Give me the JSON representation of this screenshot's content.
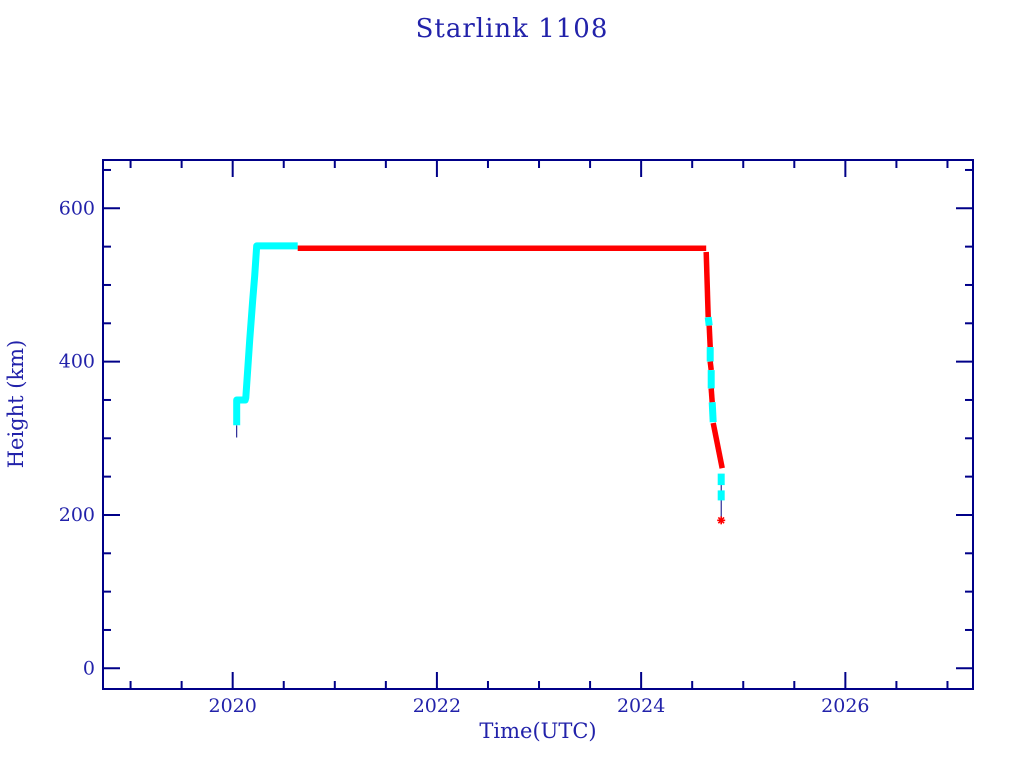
{
  "page": {
    "background": "#ffffff"
  },
  "chart_data": {
    "type": "line",
    "title": "Starlink 1108",
    "xlabel": "Time(UTC)",
    "ylabel": "Height (km)",
    "xlim": [
      2018.73,
      2027.25
    ],
    "ylim": [
      -27,
      663
    ],
    "xticks": [
      2020,
      2022,
      2024,
      2026
    ],
    "xminor_step": 0.5,
    "yticks": [
      0,
      200,
      400,
      600
    ],
    "yminor_step": 50,
    "grid": false,
    "legend": "none",
    "colors": {
      "frame": "#000088",
      "text": "#2222aa",
      "track_line": "#000080",
      "cyan_marker": "#00ffff",
      "red_marker": "#ff0000"
    },
    "segments": [
      {
        "c": "line",
        "points": [
          [
            2020.039,
            301
          ],
          [
            2020.039,
            317
          ]
        ]
      },
      {
        "c": "cyan",
        "points": [
          [
            2020.039,
            317
          ],
          [
            2020.039,
            350
          ],
          [
            2020.123,
            350
          ],
          [
            2020.128,
            353
          ],
          [
            2020.167,
            428
          ],
          [
            2020.196,
            480
          ],
          [
            2020.216,
            512
          ],
          [
            2020.235,
            551
          ],
          [
            2020.637,
            551
          ]
        ]
      },
      {
        "c": "red",
        "points": [
          [
            2020.637,
            548
          ],
          [
            2024.637,
            548
          ]
        ]
      },
      {
        "c": "red",
        "points": [
          [
            2024.637,
            543
          ],
          [
            2024.657,
            458
          ]
        ]
      },
      {
        "c": "cyan",
        "points": [
          [
            2024.657,
            458
          ],
          [
            2024.667,
            447
          ]
        ]
      },
      {
        "c": "red",
        "points": [
          [
            2024.667,
            447
          ],
          [
            2024.676,
            419
          ]
        ]
      },
      {
        "c": "cyan",
        "points": [
          [
            2024.676,
            419
          ],
          [
            2024.676,
            400
          ]
        ]
      },
      {
        "c": "red",
        "points": [
          [
            2024.676,
            400
          ],
          [
            2024.686,
            389
          ]
        ]
      },
      {
        "c": "cyan",
        "points": [
          [
            2024.686,
            389
          ],
          [
            2024.686,
            365
          ]
        ]
      },
      {
        "c": "red",
        "points": [
          [
            2024.686,
            365
          ],
          [
            2024.696,
            347
          ]
        ]
      },
      {
        "c": "cyan",
        "points": [
          [
            2024.696,
            347
          ],
          [
            2024.706,
            321
          ]
        ]
      },
      {
        "c": "red",
        "points": [
          [
            2024.706,
            320
          ],
          [
            2024.794,
            261
          ]
        ]
      },
      {
        "c": "cyan",
        "points": [
          [
            2024.784,
            254
          ],
          [
            2024.784,
            239
          ]
        ]
      },
      {
        "c": "line",
        "points": [
          [
            2024.784,
            239
          ],
          [
            2024.784,
            197
          ]
        ]
      },
      {
        "c": "cyan",
        "points": [
          [
            2024.784,
            232
          ],
          [
            2024.784,
            219
          ]
        ]
      },
      {
        "c": "red",
        "points": [
          [
            2024.784,
            193
          ]
        ]
      }
    ]
  }
}
